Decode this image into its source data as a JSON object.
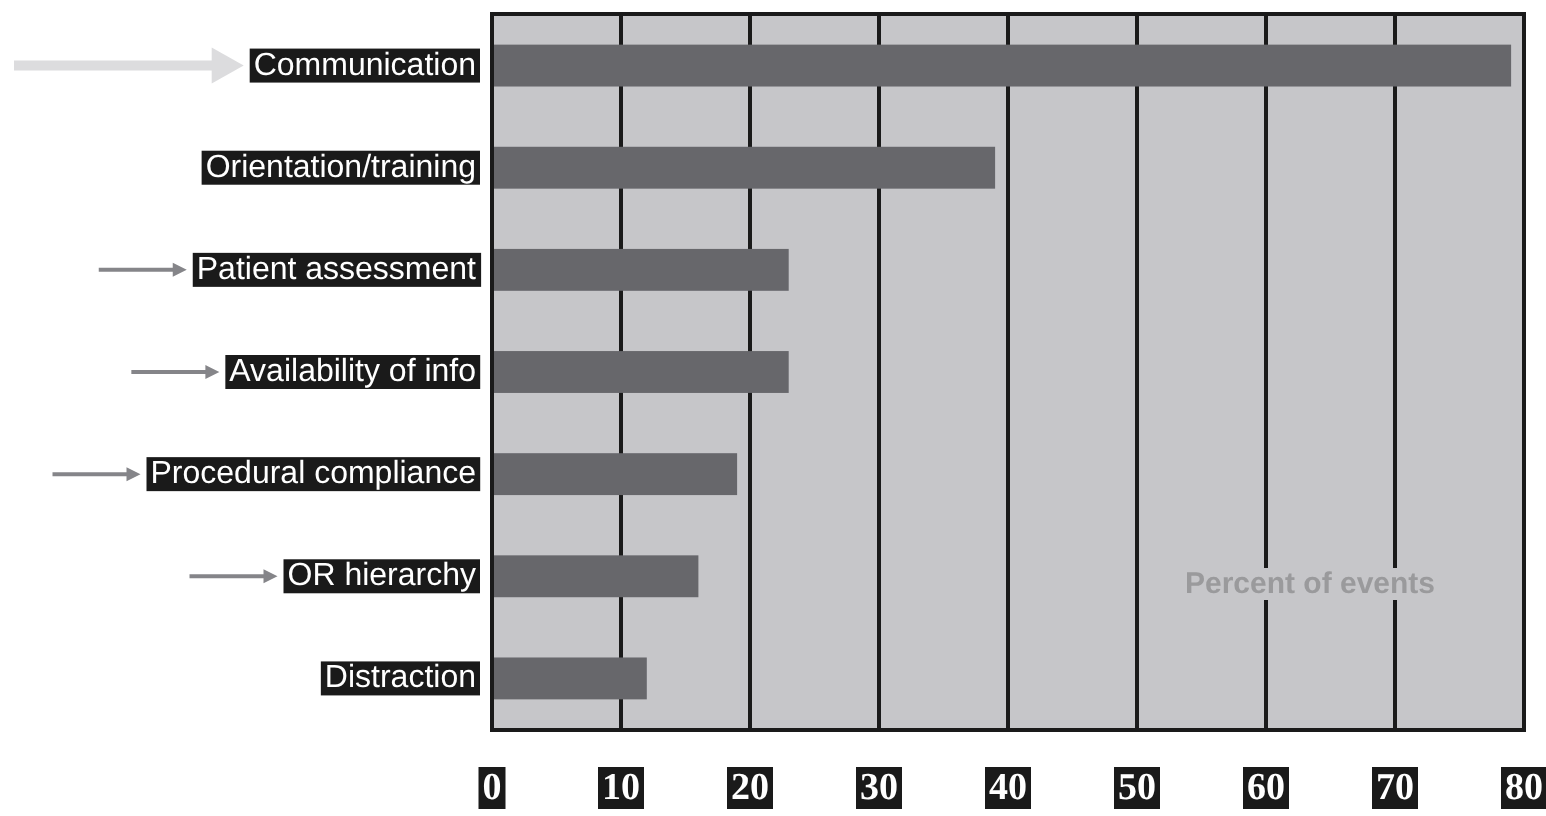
{
  "chart_data": {
    "type": "bar",
    "orientation": "horizontal",
    "xlabel": "Percent of events",
    "categories": [
      "Communication",
      "Orientation/training",
      "Patient assessment",
      "Availability of info",
      "Procedural compliance",
      "OR hierarchy",
      "Distraction"
    ],
    "values": [
      79,
      39,
      23,
      23,
      19,
      16,
      12
    ],
    "color": "#67676b",
    "xlim": [
      0,
      80
    ],
    "xticks": [
      0,
      10,
      20,
      30,
      40,
      50,
      60,
      70,
      80
    ],
    "grid": "x"
  }
}
